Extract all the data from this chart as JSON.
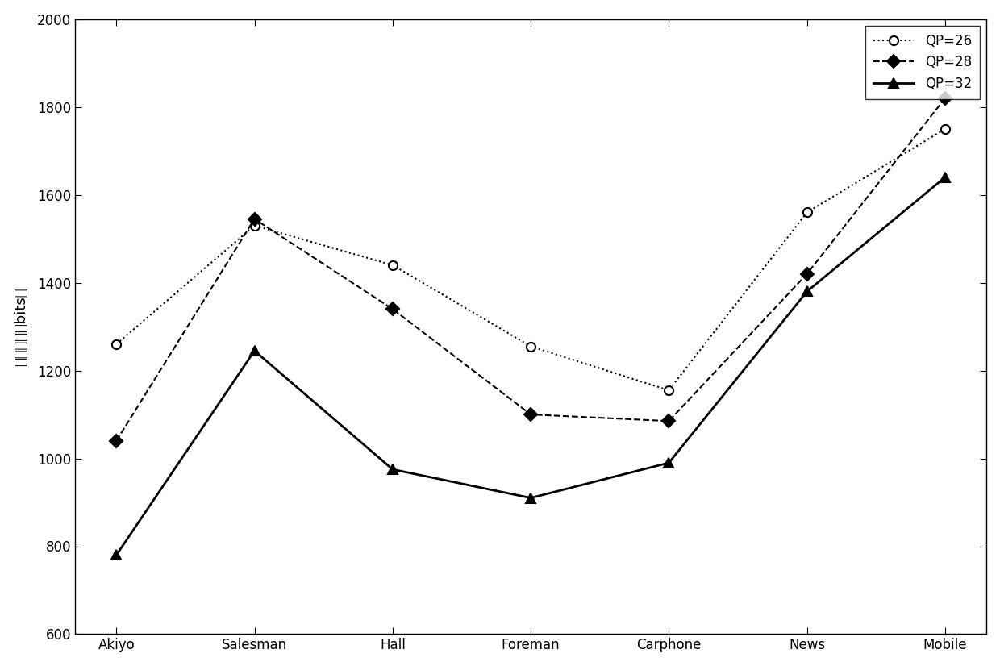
{
  "categories": [
    "Akiyo",
    "Salesman",
    "Hall",
    "Foreman",
    "Carphone",
    "News",
    "Mobile"
  ],
  "series": [
    {
      "label": "QP=26",
      "values": [
        1260,
        1530,
        1440,
        1255,
        1155,
        1560,
        1750
      ],
      "linestyle": "dotted",
      "marker": "o",
      "markersize": 8,
      "linewidth": 1.5,
      "color": "#000000",
      "markerfacecolor": "white",
      "markeredgecolor": "#000000"
    },
    {
      "label": "QP=28",
      "values": [
        1040,
        1545,
        1340,
        1100,
        1085,
        1420,
        1820
      ],
      "linestyle": "dashed",
      "marker": "D",
      "markersize": 8,
      "linewidth": 1.5,
      "color": "#000000",
      "markerfacecolor": "#000000",
      "markeredgecolor": "#000000"
    },
    {
      "label": "QP=32",
      "values": [
        780,
        1245,
        975,
        910,
        990,
        1380,
        1640
      ],
      "linestyle": "solid",
      "marker": "^",
      "markersize": 9,
      "linewidth": 2.0,
      "color": "#000000",
      "markerfacecolor": "#000000",
      "markeredgecolor": "#000000"
    }
  ],
  "ylabel": "嵌入容量（bits）",
  "ylim": [
    600,
    2000
  ],
  "yticks": [
    600,
    800,
    1000,
    1200,
    1400,
    1600,
    1800,
    2000
  ],
  "legend_loc": "upper right",
  "background_color": "#ffffff",
  "label_fontsize": 13,
  "tick_fontsize": 12,
  "legend_fontsize": 12
}
